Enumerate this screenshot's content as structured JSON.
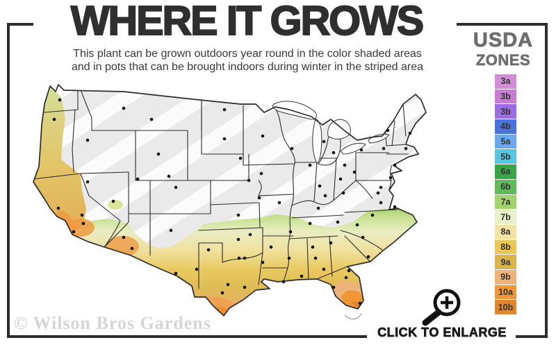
{
  "header": {
    "title": "WHERE IT GROWS",
    "subtitle_line1": "This plant can be grown outdoors year round in the color shaded areas",
    "subtitle_line2": "and in pots that can be brought indoors during winter in the striped area"
  },
  "legend": {
    "title_line1": "USDA",
    "title_line2": "ZONES",
    "zones": [
      {
        "label": "3a",
        "color": "#d28fd7"
      },
      {
        "label": "3b",
        "color": "#c77ed2"
      },
      {
        "label": "3b",
        "color": "#9b6ce2"
      },
      {
        "label": "4b",
        "color": "#4a72d9"
      },
      {
        "label": "5a",
        "color": "#6da7f0"
      },
      {
        "label": "5b",
        "color": "#57c6e0"
      },
      {
        "label": "6a",
        "color": "#3aa449"
      },
      {
        "label": "6b",
        "color": "#62b95c"
      },
      {
        "label": "7a",
        "color": "#a2d46e"
      },
      {
        "label": "7b",
        "color": "#e9efc7"
      },
      {
        "label": "8a",
        "color": "#f2e2a3"
      },
      {
        "label": "8b",
        "color": "#eac658"
      },
      {
        "label": "9a",
        "color": "#dcb44e"
      },
      {
        "label": "9b",
        "color": "#eeb378"
      },
      {
        "label": "10a",
        "color": "#f09636"
      },
      {
        "label": "10b",
        "color": "#e1862f"
      }
    ]
  },
  "footer": {
    "watermark": "© Wilson Bros Gardens",
    "enlarge_label": "CLICK TO ENLARGE"
  },
  "map": {
    "description": "USDA hardiness zone map of the contiguous United States",
    "colors": {
      "frame": "#2d2d2d",
      "stripe_base": "#eaeaea",
      "stripe_light": "#fbfbfb",
      "state_line": "#2b2b2b",
      "city_dot": "#111111"
    }
  }
}
